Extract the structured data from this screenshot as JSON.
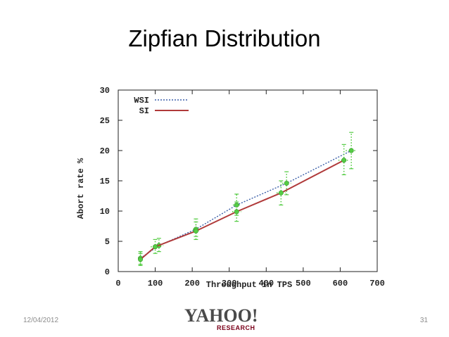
{
  "slide": {
    "title": "Zipfian Distribution",
    "date": "12/04/2012",
    "page_number": "31"
  },
  "logo": {
    "main": "YAHOO!",
    "sub": "RESEARCH"
  },
  "chart_data": {
    "type": "line",
    "title": "",
    "xlabel": "Throughput in TPS",
    "ylabel": "Abort rate %",
    "xlim": [
      0,
      700
    ],
    "ylim": [
      0,
      30
    ],
    "xticks": [
      0,
      100,
      200,
      300,
      400,
      500,
      600,
      700
    ],
    "yticks": [
      0,
      5,
      10,
      15,
      20,
      25,
      30
    ],
    "grid": false,
    "legend_position": "top-left",
    "series": [
      {
        "name": "WSI",
        "style": "dotted",
        "color": "#3b5fa8",
        "points": [
          {
            "x": 60,
            "y": 2.2,
            "xerr": 5,
            "ylo": 1.2,
            "yhi": 3.3
          },
          {
            "x": 110,
            "y": 4.3,
            "xerr": 12,
            "ylo": 3.3,
            "yhi": 5.5
          },
          {
            "x": 210,
            "y": 7.0,
            "xerr": 8,
            "ylo": 5.8,
            "yhi": 8.7
          },
          {
            "x": 320,
            "y": 11.0,
            "xerr": 10,
            "ylo": 9.3,
            "yhi": 12.8
          },
          {
            "x": 455,
            "y": 14.6,
            "xerr": 12,
            "ylo": 12.7,
            "yhi": 16.5
          },
          {
            "x": 630,
            "y": 20.0,
            "xerr": 15,
            "ylo": 17.0,
            "yhi": 23.0
          }
        ]
      },
      {
        "name": "SI",
        "style": "solid",
        "color": "#b03a3a",
        "points": [
          {
            "x": 60,
            "y": 2.0,
            "xerr": 5,
            "ylo": 1.0,
            "yhi": 3.0
          },
          {
            "x": 100,
            "y": 4.1,
            "xerr": 12,
            "ylo": 3.0,
            "yhi": 5.3
          },
          {
            "x": 210,
            "y": 6.7,
            "xerr": 8,
            "ylo": 5.3,
            "yhi": 8.2
          },
          {
            "x": 320,
            "y": 9.9,
            "xerr": 12,
            "ylo": 8.3,
            "yhi": 11.5
          },
          {
            "x": 440,
            "y": 13.0,
            "xerr": 12,
            "ylo": 11.0,
            "yhi": 15.0
          },
          {
            "x": 610,
            "y": 18.4,
            "xerr": 15,
            "ylo": 16.0,
            "yhi": 21.0
          }
        ]
      }
    ],
    "marker_color": "#55cc44"
  }
}
